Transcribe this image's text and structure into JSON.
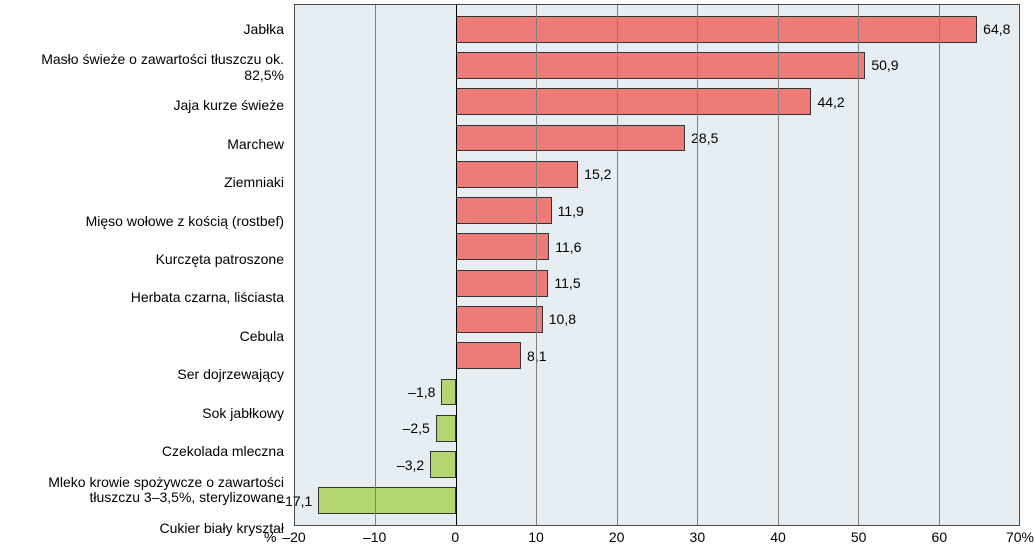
{
  "chart": {
    "type": "bar-horizontal",
    "xlim": [
      -20,
      70
    ],
    "xticks": [
      -20,
      -10,
      0,
      10,
      20,
      30,
      40,
      50,
      60,
      70
    ],
    "unit_suffix": "%",
    "percent_prefix": "%",
    "background_color": "#e6eef4",
    "grid_color": "#808080",
    "border_color": "#4a4a4a",
    "positive_color": "#ee7b77",
    "negative_color": "#b4d671",
    "label_fontsize": 14,
    "value_fontsize": 14,
    "bar_height_ratio": 0.74,
    "items": [
      {
        "label": "Jabłka",
        "value": 64.8,
        "display": "64,8"
      },
      {
        "label": "Masło świeże o zawartości tłuszczu ok. 82,5%",
        "value": 50.9,
        "display": "50,9"
      },
      {
        "label": "Jaja kurze świeże",
        "value": 44.2,
        "display": "44,2"
      },
      {
        "label": "Marchew",
        "value": 28.5,
        "display": "28,5"
      },
      {
        "label": "Ziemniaki",
        "value": 15.2,
        "display": "15,2"
      },
      {
        "label": "Mięso wołowe z kością (rostbef)",
        "value": 11.9,
        "display": "11,9"
      },
      {
        "label": "Kurczęta patroszone",
        "value": 11.6,
        "display": "11,6"
      },
      {
        "label": "Herbata czarna, liściasta",
        "value": 11.5,
        "display": "11,5"
      },
      {
        "label": "Cebula",
        "value": 10.8,
        "display": "10,8"
      },
      {
        "label": "Ser dojrzewający",
        "value": 8.1,
        "display": "8,1"
      },
      {
        "label": "Sok jabłkowy",
        "value": -1.8,
        "display": "–1,8"
      },
      {
        "label": "Czekolada mleczna",
        "value": -2.5,
        "display": "–2,5"
      },
      {
        "label": "Mleko krowie spożywcze o zawartości",
        "label2": "tłuszczu 3–3,5%, sterylizowane",
        "value": -3.2,
        "display": "–3,2"
      },
      {
        "label": "Cukier biały kryształ",
        "value": -17.1,
        "display": "–17,1"
      }
    ]
  }
}
